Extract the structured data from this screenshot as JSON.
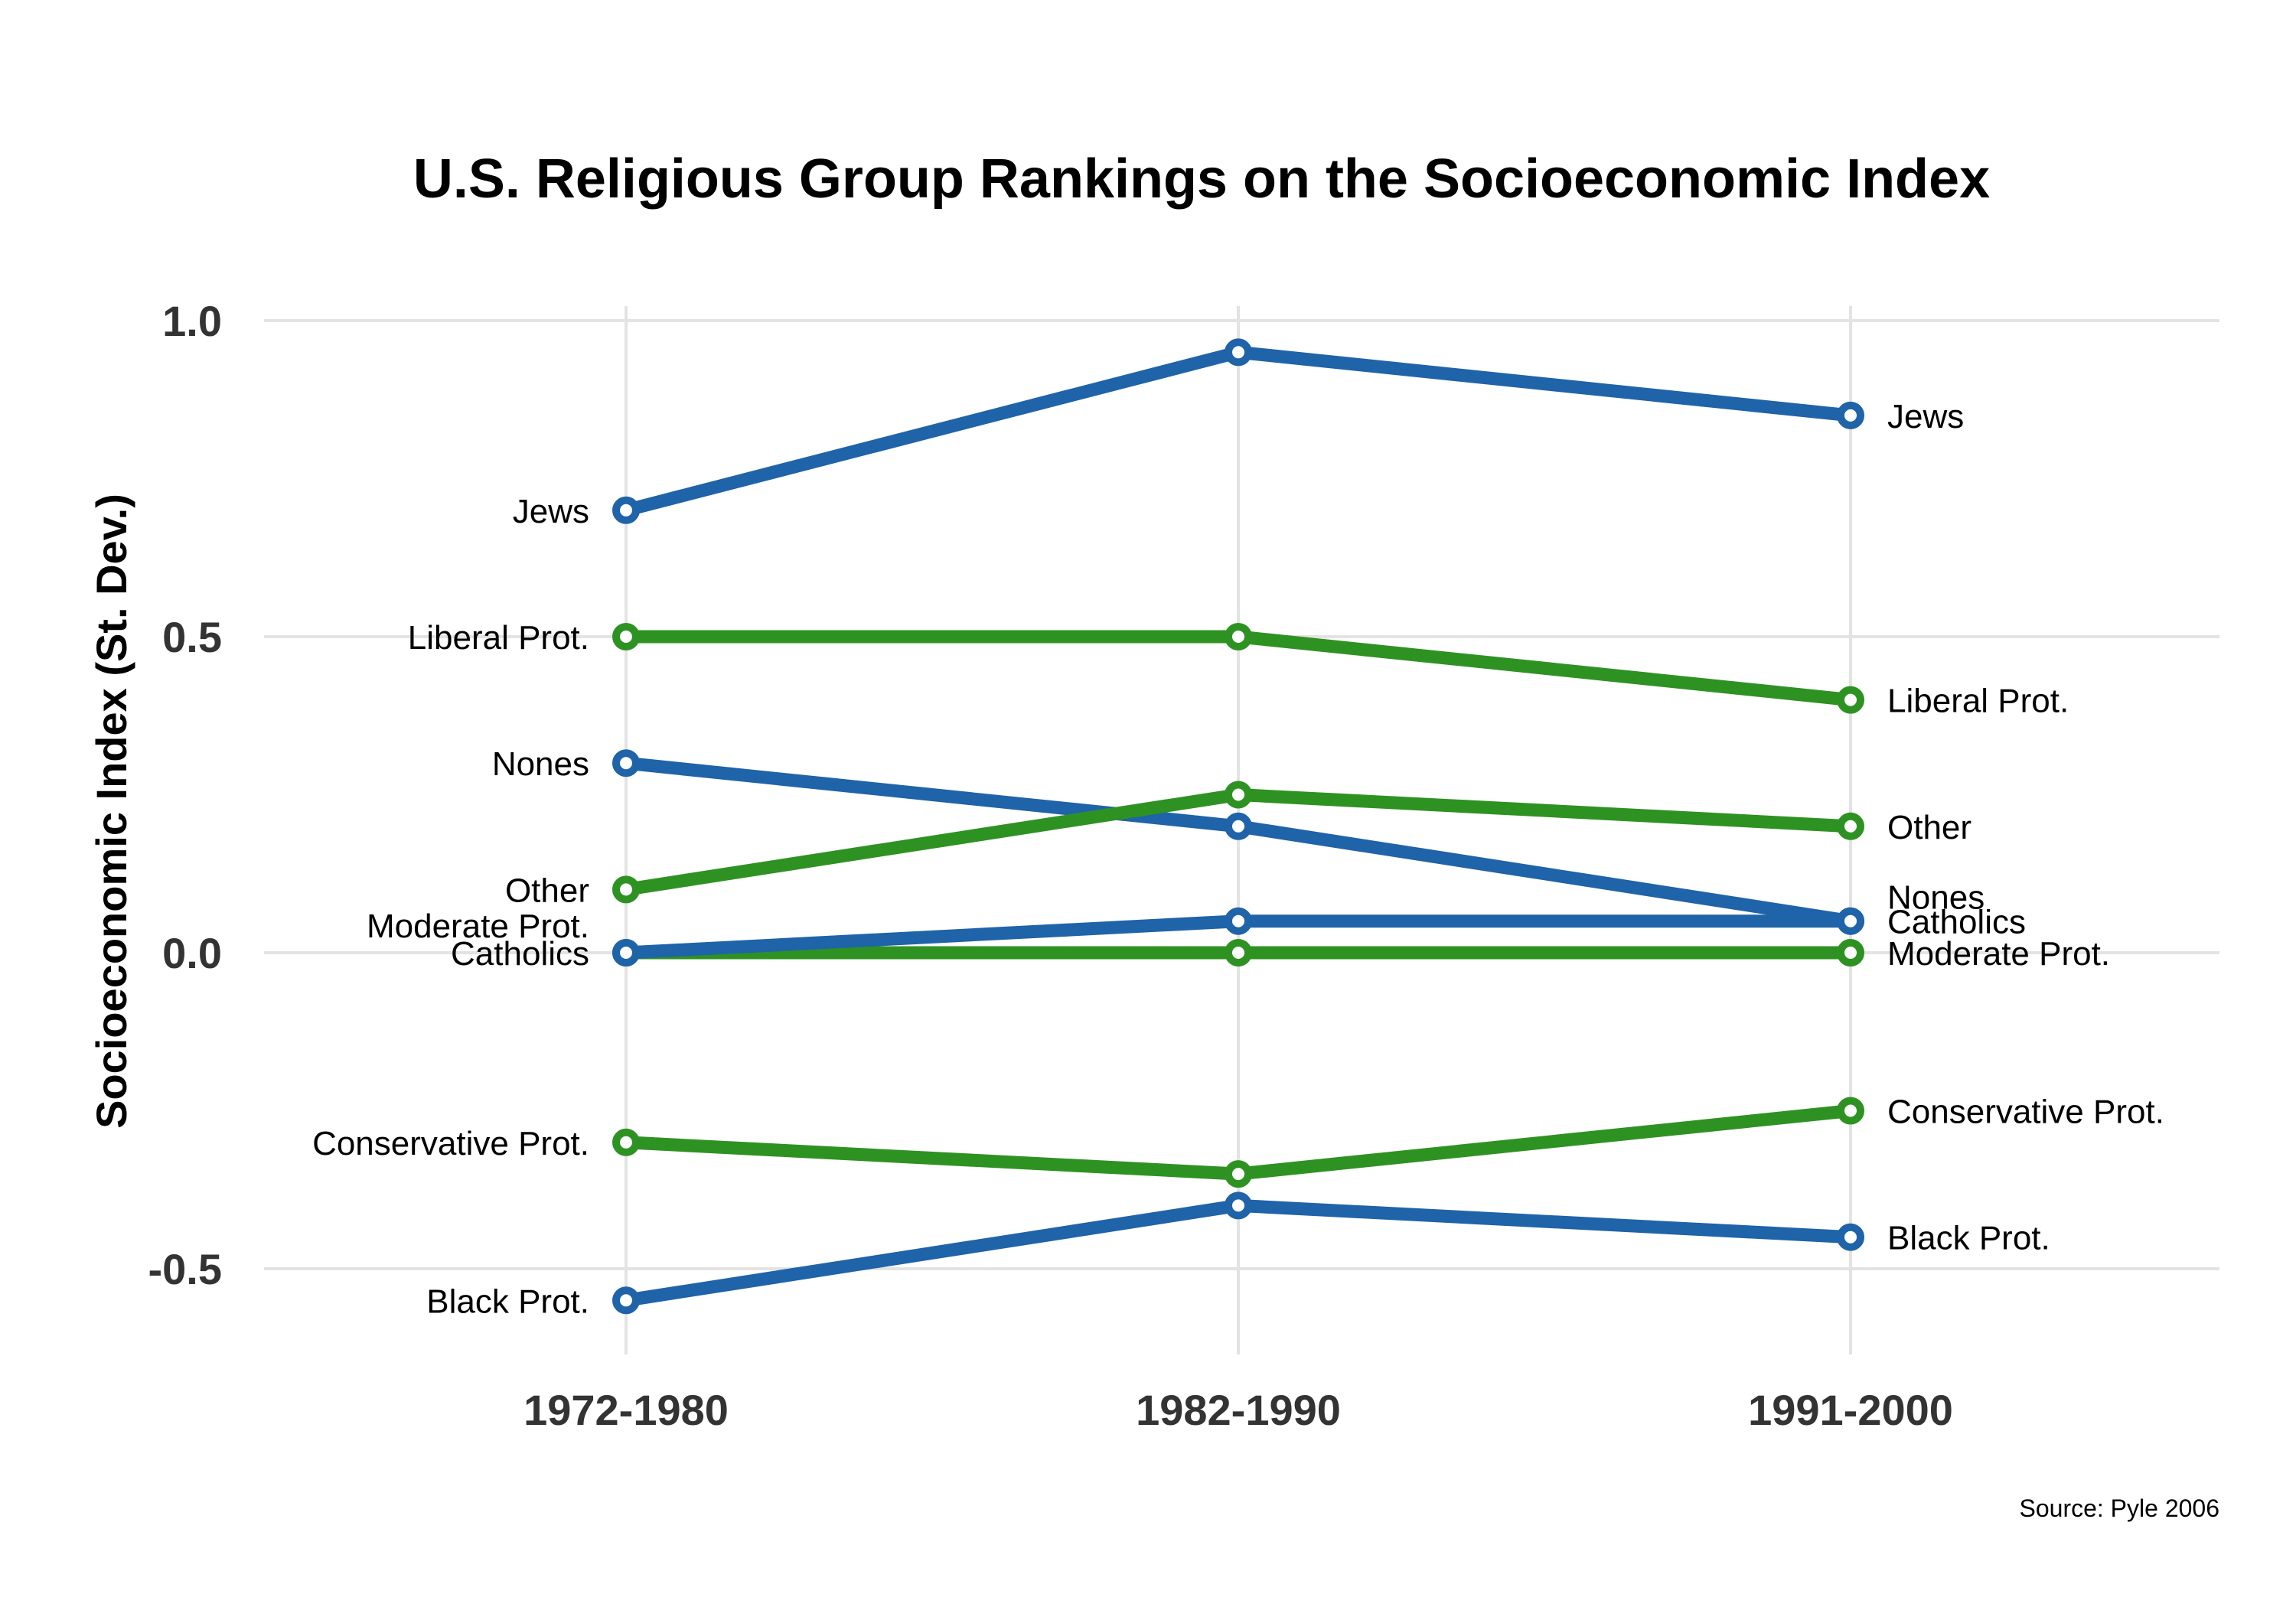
{
  "chart_data": {
    "type": "line",
    "title": "U.S. Religious Group Rankings on the Socioeconomic Index",
    "xlabel": "",
    "ylabel": "Socioeconomic Index (St. Dev.)",
    "categories": [
      "1972-1980",
      "1982-1990",
      "1991-2000"
    ],
    "ylim": [
      -0.55,
      1.0
    ],
    "yticks": [
      "1.0",
      "0.5",
      "0.0",
      "-0.5"
    ],
    "ytick_values": [
      1.0,
      0.5,
      0.0,
      -0.5
    ],
    "grid": true,
    "legend": "none",
    "colors": {
      "blue": "#1f63a8",
      "green": "#2e9222"
    },
    "series": [
      {
        "name": "Jews",
        "color_group": "blue",
        "values": [
          0.7,
          0.95,
          0.85
        ]
      },
      {
        "name": "Liberal Prot.",
        "color_group": "green",
        "values": [
          0.5,
          0.5,
          0.4
        ]
      },
      {
        "name": "Nones",
        "color_group": "blue",
        "values": [
          0.3,
          0.2,
          0.05
        ]
      },
      {
        "name": "Other",
        "color_group": "green",
        "values": [
          0.1,
          0.25,
          0.2
        ]
      },
      {
        "name": "Moderate Prot.",
        "color_group": "green",
        "values": [
          0.0,
          0.0,
          0.0
        ]
      },
      {
        "name": "Catholics",
        "color_group": "blue",
        "values": [
          0.0,
          0.05,
          0.05
        ]
      },
      {
        "name": "Conservative Prot.",
        "color_group": "green",
        "values": [
          -0.3,
          -0.35,
          -0.25
        ]
      },
      {
        "name": "Black Prot.",
        "color_group": "blue",
        "values": [
          -0.55,
          -0.4,
          -0.45
        ]
      }
    ],
    "caption": "Source: Pyle 2006"
  }
}
